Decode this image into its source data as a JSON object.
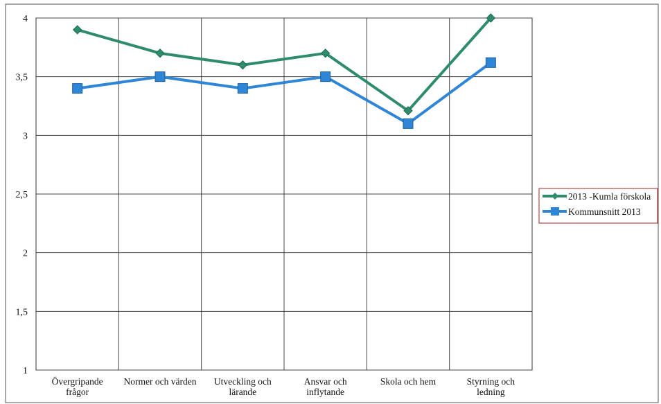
{
  "chart_data": {
    "type": "line",
    "categories": [
      [
        "Övergripande",
        "frågor"
      ],
      [
        "Normer och värden"
      ],
      [
        "Utveckling och",
        "lärande"
      ],
      [
        "Ansvar och",
        "inflytande"
      ],
      [
        "Skola och hem"
      ],
      [
        "Styrning och",
        "ledning"
      ]
    ],
    "ylim": [
      1,
      4
    ],
    "yticks": [
      "1",
      "1,5",
      "2",
      "2,5",
      "3",
      "3,5",
      "4"
    ],
    "ytick_values": [
      1,
      1.5,
      2,
      2.5,
      3,
      3.5,
      4
    ],
    "grid": true,
    "legend_position": "right",
    "series": [
      {
        "name": "2013 -Kumla förskola",
        "values": [
          3.9,
          3.7,
          3.6,
          3.7,
          3.21,
          4.0
        ],
        "color": "#2e8b6e",
        "marker": "diamond"
      },
      {
        "name": "Kommunsnitt 2013",
        "values": [
          3.4,
          3.5,
          3.4,
          3.5,
          3.1,
          3.62
        ],
        "color": "#2f86d6",
        "marker": "square"
      }
    ]
  }
}
